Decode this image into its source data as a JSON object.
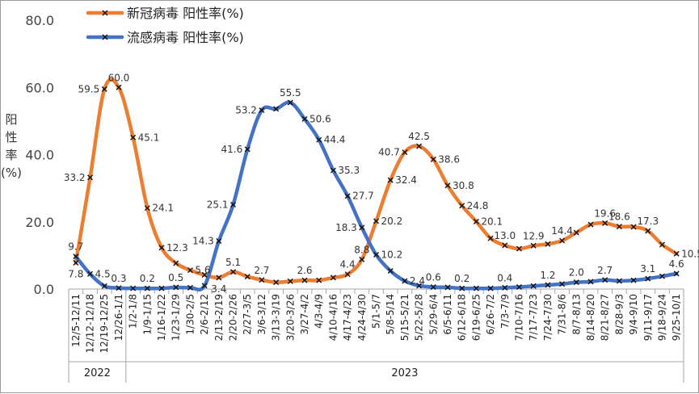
{
  "chart_data": {
    "type": "line",
    "title": "",
    "ylabel": "阳性率(%)",
    "ylabel_chars": [
      "阳",
      "性",
      "率",
      "(%)"
    ],
    "xlabel": "",
    "ylim": [
      0,
      80
    ],
    "y_ticks": [
      "0.0",
      "20.0",
      "40.0",
      "60.0",
      "80.0"
    ],
    "grid": false,
    "legend_position": "top-left",
    "year_groups": [
      {
        "label": "2022",
        "count": 4
      },
      {
        "label": "2023",
        "count": 39
      }
    ],
    "categories": [
      "12/5-12/11",
      "12/12-12/18",
      "12/19-12/25",
      "12/26-1/1",
      "1/2-1/8",
      "1/9-1/15",
      "1/16-1/22",
      "1/23-1/29",
      "1/30-2/5",
      "2/6-2/12",
      "2/13-2/19",
      "2/20-2/26",
      "2/27-3/5",
      "3/6-3/12",
      "3/13-3/19",
      "3/20-3/26",
      "3/27-4/2",
      "4/3-4/9",
      "4/10-4/16",
      "4/17-4/23",
      "4/24-4/30",
      "5/1-5/7",
      "5/8-5/14",
      "5/15-5/21",
      "5/22-5/28",
      "5/29-6/4",
      "6/5-6/11",
      "6/12-6/18",
      "6/19-6/25",
      "6/26-7/2",
      "7/3-7/9",
      "7/10-7/16",
      "7/17-7/23",
      "7/24-7/30",
      "7/31-8/6",
      "8/7-8/13",
      "8/14-8/20",
      "8/21-8/27",
      "8/28-9/3",
      "9/4-9/10",
      "9/11-9/17",
      "9/18-9/24",
      "9/25-10/1"
    ],
    "series": [
      {
        "name": "新冠病毒 阳性率(%)",
        "color": "#ED7D31",
        "values": [
          7.8,
          33.2,
          59.5,
          60.0,
          45.1,
          24.1,
          12.3,
          7.7,
          5.6,
          4.2,
          3.4,
          5.1,
          3.7,
          2.7,
          2.0,
          2.3,
          2.6,
          2.6,
          3.4,
          4.4,
          8.8,
          20.2,
          32.4,
          40.7,
          42.5,
          38.6,
          30.8,
          24.8,
          20.1,
          15.1,
          13.0,
          12.0,
          12.9,
          13.4,
          14.4,
          16.8,
          19.2,
          19.6,
          18.6,
          18.5,
          17.3,
          13.2,
          10.5
        ],
        "labels": [
          "7.8",
          "33.2",
          "59.5",
          "60.0",
          "45.1",
          "24.1",
          "12.3",
          "",
          "5.6",
          "",
          "3.4",
          "5.1",
          "",
          "2.7",
          "",
          "",
          "2.6",
          "",
          "",
          "4.4",
          "8.8",
          "20.2",
          "32.4",
          "40.7",
          "42.5",
          "38.6",
          "30.8",
          "24.8",
          "20.1",
          "",
          "13.0",
          "",
          "12.9",
          "",
          "14.4",
          "",
          "",
          "19.6",
          "18.6",
          "",
          "17.3",
          "",
          "10.5"
        ],
        "label_side": [
          "below",
          "left",
          "left",
          "above",
          "right",
          "right",
          "right",
          "",
          "right",
          "",
          "below",
          "above",
          "",
          "above",
          "",
          "",
          "above",
          "",
          "",
          "above",
          "above",
          "right",
          "right",
          "left",
          "above",
          "right",
          "right",
          "right",
          "right",
          "",
          "above",
          "",
          "above",
          "",
          "above",
          "",
          "",
          "above",
          "above",
          "",
          "above",
          "",
          "right"
        ]
      },
      {
        "name": "流感病毒 阳性率(%)",
        "color": "#4472C4",
        "values": [
          9.7,
          4.5,
          0.9,
          0.3,
          0.2,
          0.2,
          0.2,
          0.5,
          0.4,
          1.0,
          14.3,
          25.1,
          41.6,
          53.2,
          53.6,
          55.5,
          50.6,
          44.4,
          35.3,
          27.7,
          18.3,
          10.2,
          5.4,
          2.4,
          1.0,
          0.6,
          0.5,
          0.2,
          0.2,
          0.2,
          0.4,
          0.6,
          0.9,
          1.2,
          1.5,
          2.0,
          2.2,
          2.7,
          2.4,
          2.6,
          3.1,
          3.8,
          4.6
        ],
        "labels": [
          "9.7",
          "4.5",
          "",
          "0.3",
          "",
          "0.2",
          "",
          "0.5",
          "",
          "",
          "14.3",
          "25.1",
          "41.6",
          "53.2",
          "",
          "55.5",
          "50.6",
          "44.4",
          "35.3",
          "27.7",
          "18.3",
          "10.2",
          "",
          "2.4",
          "",
          "0.6",
          "",
          "0.2",
          "",
          "",
          "0.4",
          "",
          "",
          "1.2",
          "",
          "2.0",
          "",
          "2.7",
          "",
          "",
          "3.1",
          "",
          "4.6"
        ],
        "label_side": [
          "above",
          "right",
          "",
          "above",
          "",
          "above",
          "",
          "above",
          "",
          "",
          "left",
          "left",
          "left",
          "left",
          "",
          "above",
          "right",
          "right",
          "right",
          "right",
          "left",
          "right",
          "",
          "right",
          "",
          "above",
          "",
          "above",
          "",
          "",
          "above",
          "",
          "",
          "above",
          "",
          "above",
          "",
          "above",
          "",
          "",
          "above",
          "",
          "above"
        ]
      }
    ]
  }
}
